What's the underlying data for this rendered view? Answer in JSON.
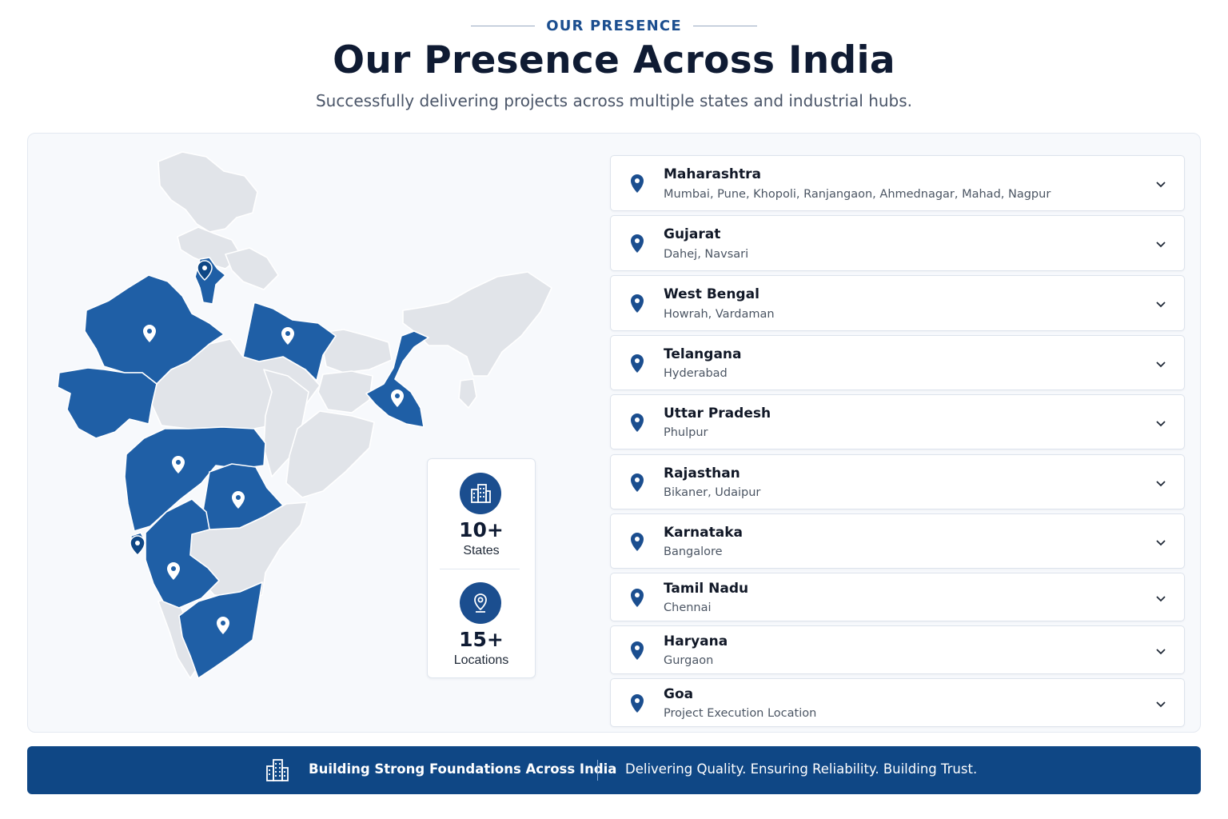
{
  "header": {
    "eyebrow": "OUR PRESENCE",
    "title": "Our Presence Across India",
    "subtitle": "Successfully delivering projects across multiple states and industrial hubs."
  },
  "colors": {
    "accent": "#1b4e8f",
    "highlight_state": "#1f5fa6",
    "base_state": "#e1e4e9",
    "footer_bg": "#0f4785"
  },
  "map": {
    "icon": "india-map",
    "highlighted_states": [
      "Gujarat",
      "Rajasthan",
      "Haryana",
      "Uttar Pradesh",
      "West Bengal",
      "Maharashtra",
      "Telangana",
      "Goa",
      "Karnataka",
      "Tamil Nadu"
    ]
  },
  "stats": [
    {
      "value": "10+",
      "label": "States",
      "icon": "buildings-icon"
    },
    {
      "value": "15+",
      "label": "Locations",
      "icon": "location-pin-icon"
    }
  ],
  "locations": [
    {
      "state": "Maharashtra",
      "cities": "Mumbai, Pune, Khopoli, Ranjangaon, Ahmednagar, Mahad, Nagpur"
    },
    {
      "state": "Gujarat",
      "cities": "Dahej, Navsari"
    },
    {
      "state": "West Bengal",
      "cities": "Howrah, Vardaman"
    },
    {
      "state": "Telangana",
      "cities": "Hyderabad"
    },
    {
      "state": "Uttar Pradesh",
      "cities": "Phulpur"
    },
    {
      "state": "Rajasthan",
      "cities": "Bikaner, Udaipur"
    },
    {
      "state": "Karnataka",
      "cities": "Bangalore"
    },
    {
      "state": "Tamil Nadu",
      "cities": "Chennai"
    },
    {
      "state": "Haryana",
      "cities": "Gurgaon"
    },
    {
      "state": "Goa",
      "cities": "Project Execution Location"
    }
  ],
  "footer": {
    "tagline": "Building Strong Foundations Across India",
    "message": "Delivering Quality. Ensuring Reliability. Building Trust.",
    "icon": "buildings-icon"
  }
}
